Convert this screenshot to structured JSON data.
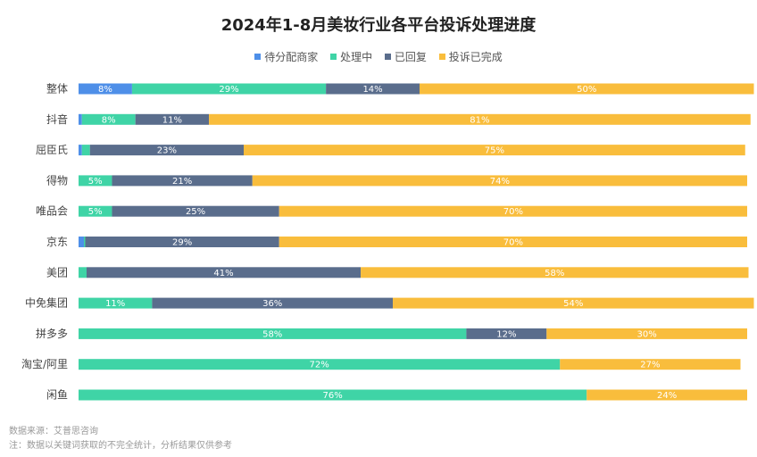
{
  "chart_data": {
    "type": "bar",
    "orientation": "horizontal",
    "stacked": true,
    "normalized": true,
    "title": "2024年1-8月美妆行业各平台投诉处理进度",
    "categories": [
      "整体",
      "抖音",
      "屈臣氏",
      "得物",
      "唯品会",
      "京东",
      "美团",
      "中免集团",
      "拼多多",
      "淘宝/阿里",
      "闲鱼"
    ],
    "series": [
      {
        "name": "待分配商家",
        "color": "#4e8fe8",
        "values": [
          8,
          0.5,
          0.5,
          0,
          0,
          0.8,
          0,
          0,
          0,
          0,
          0
        ],
        "labels": [
          "8%",
          "",
          "",
          "",
          "",
          "",
          "",
          "",
          "",
          "",
          ""
        ]
      },
      {
        "name": "处理中",
        "color": "#3fd4a6",
        "values": [
          29,
          8,
          1.2,
          5,
          5,
          0.2,
          1.2,
          11,
          58,
          72,
          76
        ],
        "labels": [
          "29%",
          "8%",
          "",
          "5%",
          "5%",
          "",
          "",
          "11%",
          "58%",
          "72%",
          "76%"
        ]
      },
      {
        "name": "已回复",
        "color": "#5a6d8c",
        "values": [
          14,
          11,
          23,
          21,
          25,
          29,
          41,
          36,
          12,
          0,
          0
        ],
        "labels": [
          "14%",
          "11%",
          "23%",
          "21%",
          "25%",
          "29%",
          "41%",
          "36%",
          "12%",
          "",
          ""
        ]
      },
      {
        "name": "投诉已完成",
        "color": "#f9bd3c",
        "values": [
          50,
          81,
          75,
          74,
          70,
          70,
          58,
          54,
          30,
          27,
          24
        ],
        "labels": [
          "50%",
          "81%",
          "75%",
          "74%",
          "70%",
          "70%",
          "58%",
          "54%",
          "30%",
          "27%",
          "24%"
        ]
      }
    ],
    "xlim": [
      0,
      100
    ],
    "legend_position": "top-center"
  },
  "footnotes": {
    "source": "数据来源：艾普思咨询",
    "note": "注：数据以关键词获取的不完全统计，分析结果仅供参考"
  }
}
